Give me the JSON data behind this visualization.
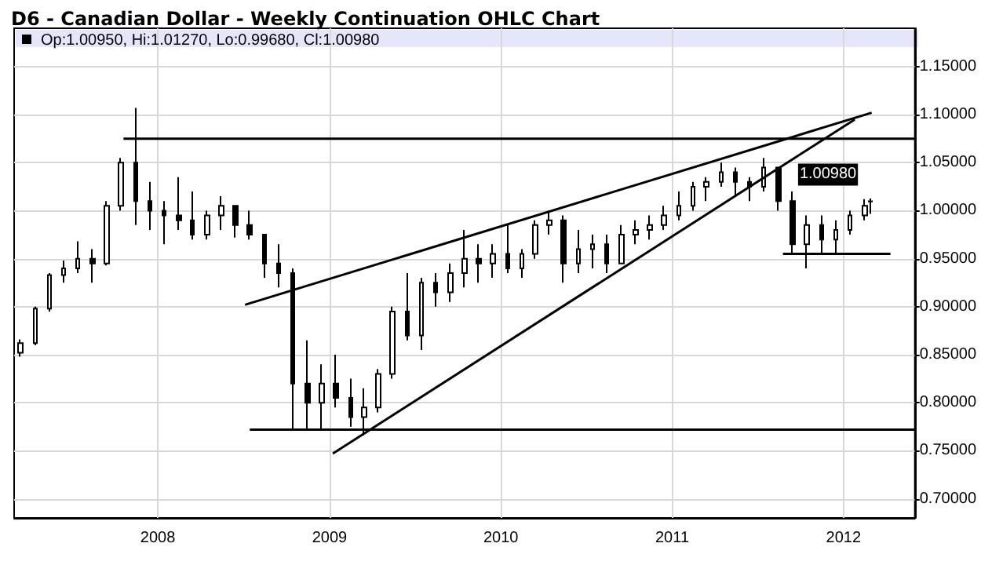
{
  "chart_data": {
    "type": "candlestick",
    "title": "D6 - Canadian Dollar - Weekly Continuation OHLC Chart",
    "subtitle": "Op:1.00950, Hi:1.01270, Lo:0.99680, Cl:1.00980",
    "annotations": [
      {
        "text": "1.00980",
        "x": "2012-02-27",
        "y": 1.0098
      }
    ],
    "xlim": [
      "2007-03-01",
      "2012-06-01"
    ],
    "xticks": [
      "2008",
      "2009",
      "2010",
      "2011",
      "2012"
    ],
    "ylim": [
      0.68,
      1.19
    ],
    "yticks": [
      {
        "value": 0.7,
        "label": "0.70000"
      },
      {
        "value": 0.75,
        "label": "0.75000"
      },
      {
        "value": 0.8,
        "label": "0.80000"
      },
      {
        "value": 0.85,
        "label": "0.85000"
      },
      {
        "value": 0.9,
        "label": "0.90000"
      },
      {
        "value": 0.95,
        "label": "0.95000"
      },
      {
        "value": 1.0,
        "label": "1.00000"
      },
      {
        "value": 1.05,
        "label": "1.05000"
      },
      {
        "value": 1.1,
        "label": "1.10000"
      },
      {
        "value": 1.15,
        "label": "1.15000"
      }
    ],
    "grid": true,
    "series": [
      {
        "color": "#000000",
        "x": [
          "2007-03-15",
          "2007-04-15",
          "2007-05-15",
          "2007-06-15",
          "2007-07-15",
          "2007-08-15",
          "2007-09-15",
          "2007-10-15",
          "2007-11-15",
          "2007-12-15",
          "2008-01-15",
          "2008-02-15",
          "2008-03-15",
          "2008-04-15",
          "2008-05-15",
          "2008-06-15",
          "2008-07-15",
          "2008-08-15",
          "2008-09-15",
          "2008-10-15",
          "2008-11-15",
          "2008-12-15",
          "2009-01-15",
          "2009-02-15",
          "2009-03-15",
          "2009-04-15",
          "2009-05-15",
          "2009-06-15",
          "2009-07-15",
          "2009-08-15",
          "2009-09-15",
          "2009-10-15",
          "2009-11-15",
          "2009-12-15",
          "2010-01-15",
          "2010-02-15",
          "2010-03-15",
          "2010-04-15",
          "2010-05-15",
          "2010-06-15",
          "2010-07-15",
          "2010-08-15",
          "2010-09-15",
          "2010-10-15",
          "2010-11-15",
          "2010-12-15",
          "2011-01-15",
          "2011-02-15",
          "2011-03-15",
          "2011-04-15",
          "2011-05-15",
          "2011-06-15",
          "2011-07-15",
          "2011-08-15",
          "2011-09-15",
          "2011-10-15",
          "2011-11-15",
          "2011-12-15",
          "2012-01-15",
          "2012-02-15",
          "2012-02-27"
        ],
        "ohlc": [
          [
            0.852,
            0.866,
            0.848,
            0.862
          ],
          [
            0.862,
            0.9,
            0.86,
            0.898
          ],
          [
            0.898,
            0.935,
            0.895,
            0.933
          ],
          [
            0.933,
            0.948,
            0.925,
            0.94
          ],
          [
            0.94,
            0.968,
            0.935,
            0.95
          ],
          [
            0.95,
            0.96,
            0.925,
            0.945
          ],
          [
            0.945,
            1.01,
            0.943,
            1.005
          ],
          [
            1.005,
            1.055,
            1.0,
            1.05
          ],
          [
            1.05,
            1.107,
            0.985,
            1.01
          ],
          [
            1.01,
            1.03,
            0.98,
            1.0
          ],
          [
            1.0,
            1.01,
            0.965,
            0.995
          ],
          [
            0.995,
            1.035,
            0.98,
            0.99
          ],
          [
            0.99,
            1.02,
            0.97,
            0.975
          ],
          [
            0.975,
            1.0,
            0.97,
            0.995
          ],
          [
            0.995,
            1.015,
            0.98,
            1.005
          ],
          [
            1.005,
            1.005,
            0.972,
            0.985
          ],
          [
            0.985,
            1.0,
            0.97,
            0.975
          ],
          [
            0.975,
            0.975,
            0.93,
            0.945
          ],
          [
            0.945,
            0.965,
            0.92,
            0.935
          ],
          [
            0.935,
            0.94,
            0.772,
            0.82
          ],
          [
            0.82,
            0.865,
            0.772,
            0.8
          ],
          [
            0.8,
            0.84,
            0.772,
            0.82
          ],
          [
            0.82,
            0.85,
            0.795,
            0.805
          ],
          [
            0.805,
            0.825,
            0.775,
            0.785
          ],
          [
            0.785,
            0.815,
            0.766,
            0.795
          ],
          [
            0.795,
            0.835,
            0.79,
            0.83
          ],
          [
            0.83,
            0.9,
            0.825,
            0.895
          ],
          [
            0.895,
            0.935,
            0.865,
            0.87
          ],
          [
            0.87,
            0.93,
            0.855,
            0.925
          ],
          [
            0.925,
            0.935,
            0.9,
            0.915
          ],
          [
            0.915,
            0.945,
            0.905,
            0.935
          ],
          [
            0.935,
            0.98,
            0.92,
            0.95
          ],
          [
            0.95,
            0.965,
            0.925,
            0.945
          ],
          [
            0.945,
            0.965,
            0.93,
            0.955
          ],
          [
            0.955,
            0.985,
            0.935,
            0.94
          ],
          [
            0.94,
            0.96,
            0.93,
            0.955
          ],
          [
            0.955,
            0.99,
            0.95,
            0.985
          ],
          [
            0.985,
            1.0,
            0.975,
            0.99
          ],
          [
            0.99,
            0.995,
            0.925,
            0.945
          ],
          [
            0.945,
            0.98,
            0.935,
            0.96
          ],
          [
            0.96,
            0.975,
            0.94,
            0.965
          ],
          [
            0.965,
            0.975,
            0.935,
            0.945
          ],
          [
            0.945,
            0.985,
            0.945,
            0.975
          ],
          [
            0.975,
            0.99,
            0.965,
            0.98
          ],
          [
            0.98,
            0.995,
            0.97,
            0.985
          ],
          [
            0.985,
            1.005,
            0.98,
            0.995
          ],
          [
            0.995,
            1.02,
            0.99,
            1.005
          ],
          [
            1.005,
            1.03,
            1.0,
            1.025
          ],
          [
            1.025,
            1.035,
            1.01,
            1.03
          ],
          [
            1.03,
            1.05,
            1.025,
            1.04
          ],
          [
            1.04,
            1.045,
            1.015,
            1.03
          ],
          [
            1.03,
            1.035,
            1.01,
            1.025
          ],
          [
            1.025,
            1.055,
            1.02,
            1.045
          ],
          [
            1.045,
            1.045,
            1.0,
            1.01
          ],
          [
            1.01,
            1.02,
            0.955,
            0.965
          ],
          [
            0.965,
            0.995,
            0.94,
            0.985
          ],
          [
            0.985,
            0.995,
            0.955,
            0.97
          ],
          [
            0.97,
            0.99,
            0.955,
            0.98
          ],
          [
            0.98,
            1.0,
            0.975,
            0.995
          ],
          [
            0.995,
            1.012,
            0.99,
            1.005
          ],
          [
            1.0095,
            1.0127,
            0.9968,
            1.0098
          ]
        ]
      },
      {
        "type": "line",
        "color": "#000000",
        "x": [
          "2007-10-20",
          "2012-06-01"
        ],
        "values": [
          1.075,
          1.075
        ]
      },
      {
        "type": "line",
        "color": "#000000",
        "x": [
          "2008-07-15",
          "2012-06-01"
        ],
        "values": [
          0.772,
          0.772
        ]
      },
      {
        "type": "line",
        "color": "#000000",
        "x": [
          "2011-08-25",
          "2012-04-10"
        ],
        "values": [
          0.955,
          0.955
        ]
      },
      {
        "type": "line",
        "color": "#000000",
        "x": [
          "2008-07-05",
          "2012-03-01"
        ],
        "values": [
          0.902,
          1.102
        ]
      },
      {
        "type": "line",
        "color": "#000000",
        "x": [
          "2009-01-08",
          "2012-01-25"
        ],
        "values": [
          0.747,
          1.095
        ]
      }
    ]
  }
}
